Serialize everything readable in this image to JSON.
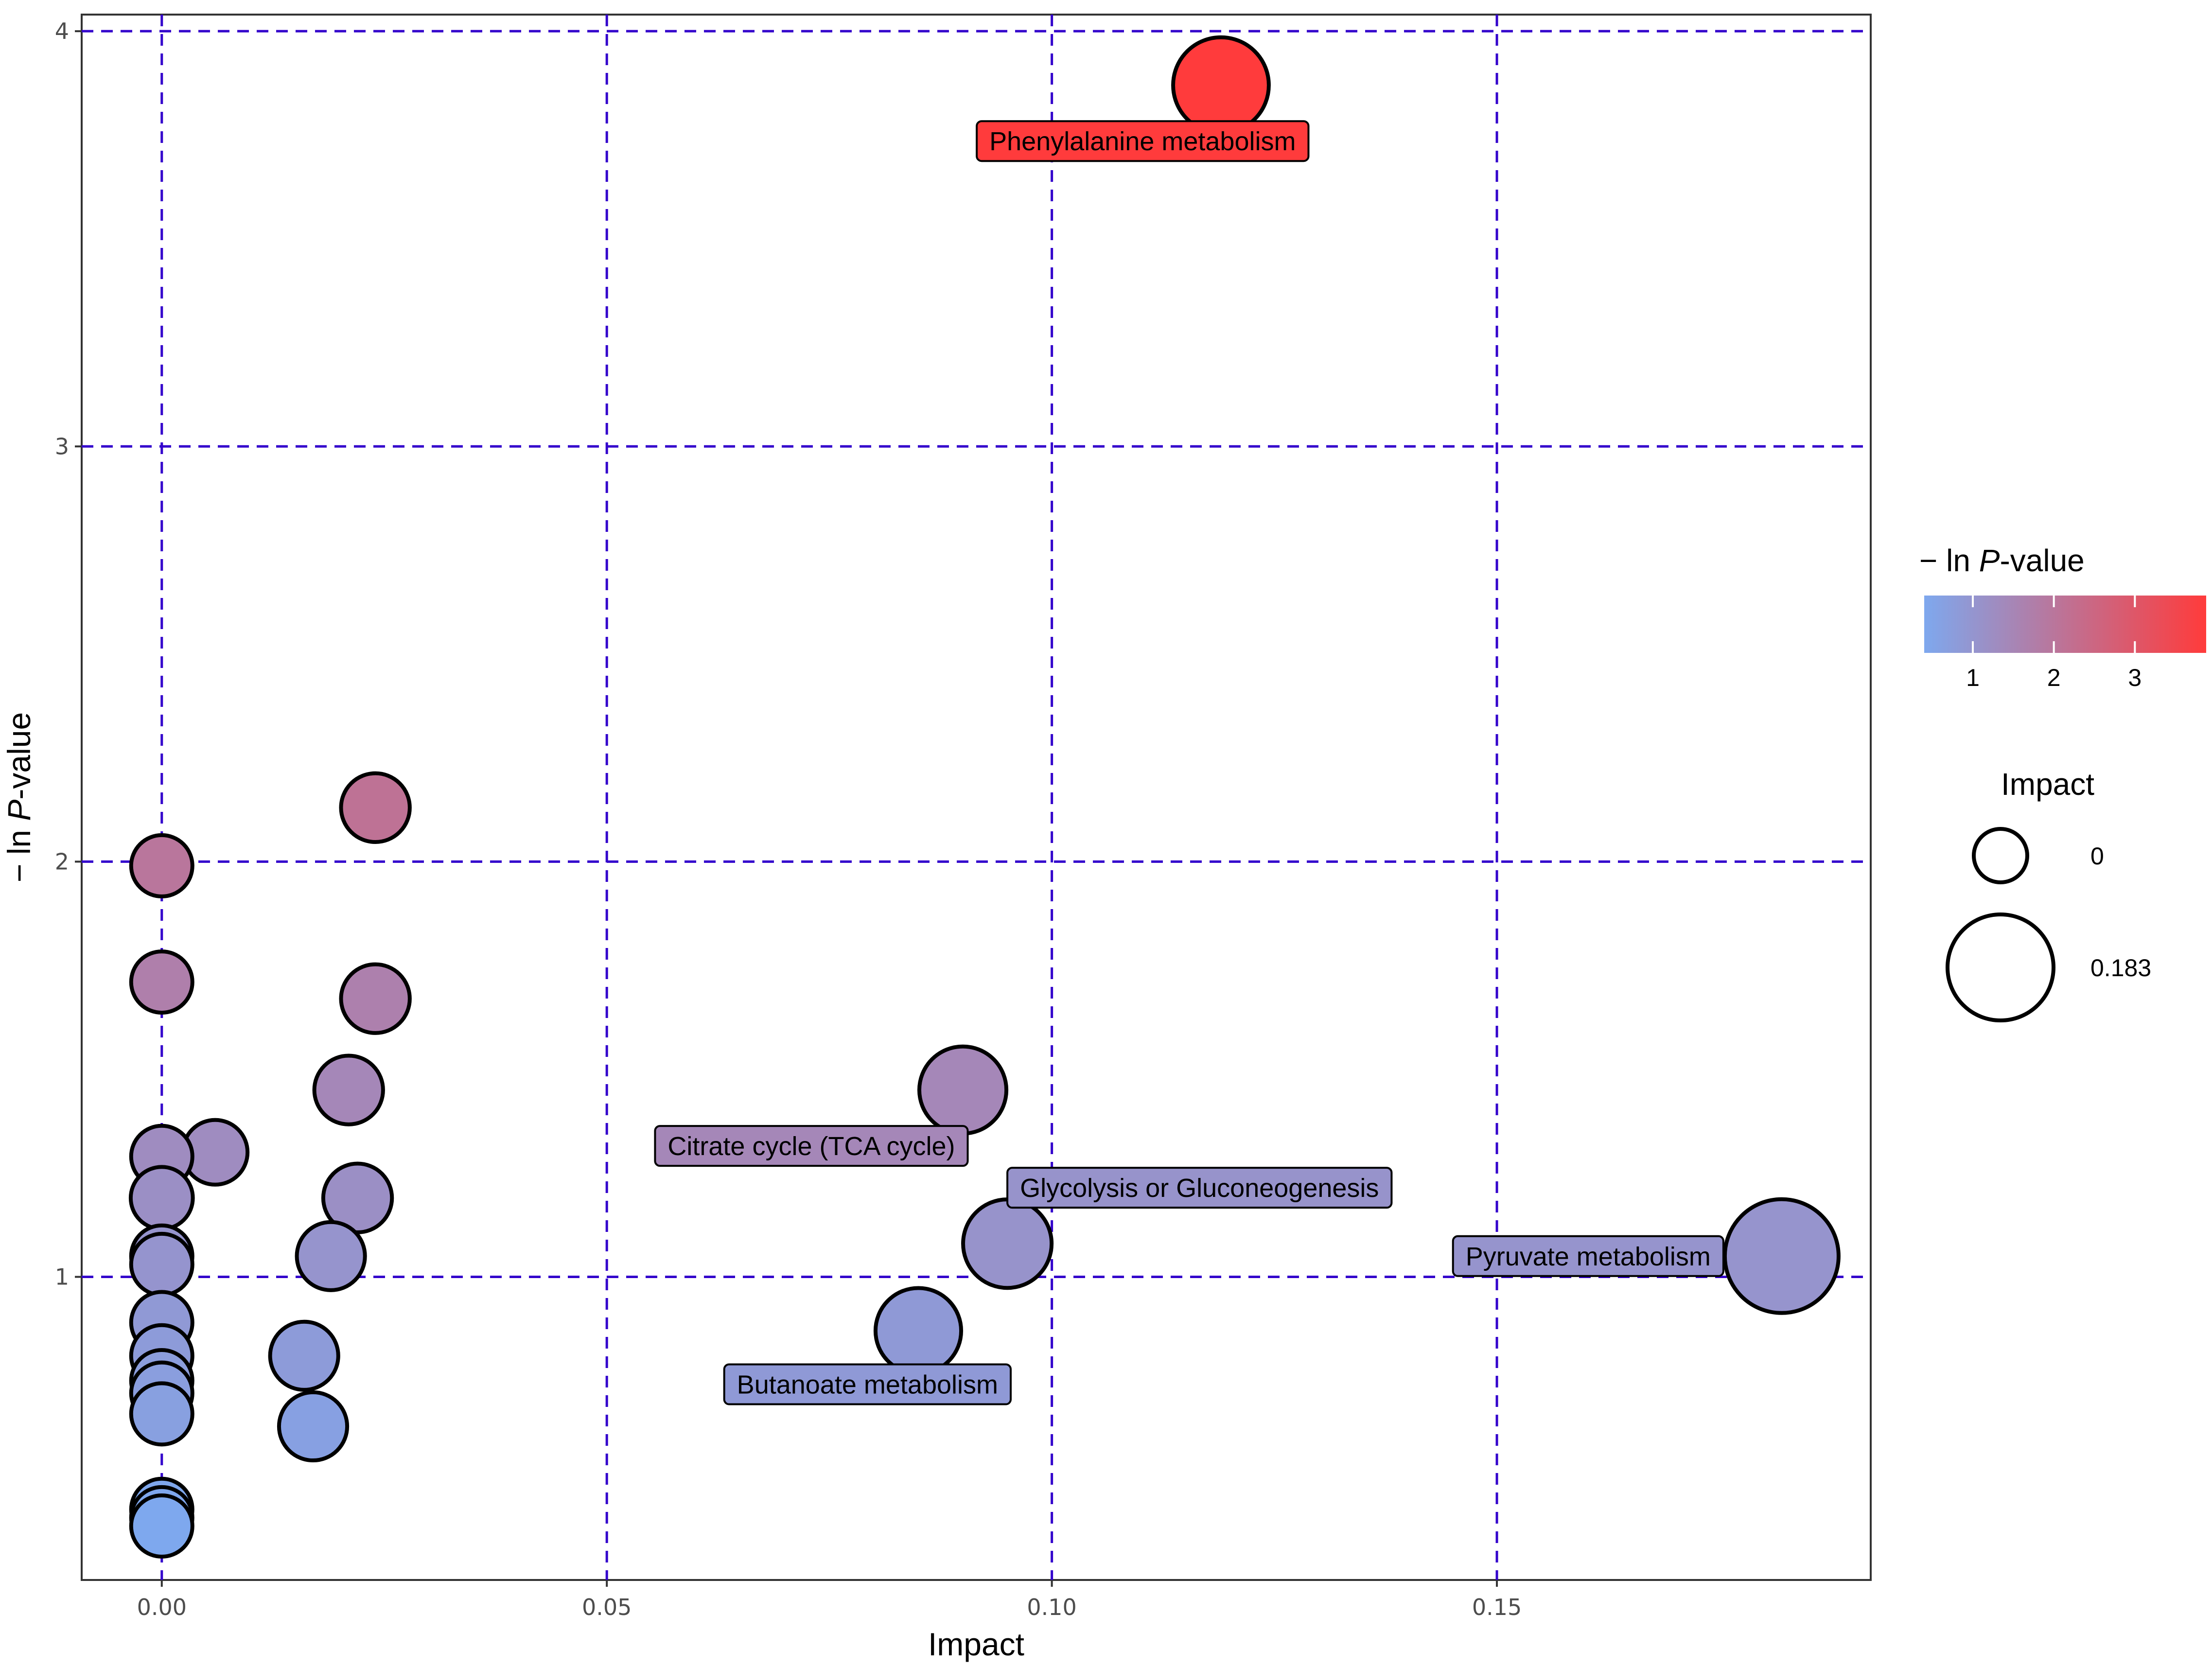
{
  "chart_data": {
    "type": "scatter",
    "xlabel": "Impact",
    "ylabel_prefix": "− ln ",
    "ylabel_italic": "P",
    "ylabel_suffix": "-value",
    "xlim": [
      -0.009,
      0.192
    ],
    "ylim": [
      0.27,
      4.04
    ],
    "x_ticks": [
      {
        "value": 0.0,
        "label": "0.00"
      },
      {
        "value": 0.05,
        "label": "0.05"
      },
      {
        "value": 0.1,
        "label": "0.10"
      },
      {
        "value": 0.15,
        "label": "0.15"
      }
    ],
    "y_ticks": [
      {
        "value": 1,
        "label": "1"
      },
      {
        "value": 2,
        "label": "2"
      },
      {
        "value": 3,
        "label": "3"
      },
      {
        "value": 4,
        "label": "4"
      }
    ],
    "grid": true,
    "grid_color": "#3300cc",
    "color_scale": {
      "low": "#7ea8ee",
      "high": "#ff3b3b",
      "min": 0.4,
      "max": 3.88
    },
    "points": [
      {
        "x": 0.119,
        "y": 3.87,
        "impact": 0.12
      },
      {
        "x": 0.024,
        "y": 2.13,
        "impact": 0.026
      },
      {
        "x": 0.0,
        "y": 1.99,
        "impact": 0.0
      },
      {
        "x": 0.0,
        "y": 1.71,
        "impact": 0.0
      },
      {
        "x": 0.024,
        "y": 1.67,
        "impact": 0.026
      },
      {
        "x": 0.021,
        "y": 1.45,
        "impact": 0.026
      },
      {
        "x": 0.09,
        "y": 1.45,
        "impact": 0.09
      },
      {
        "x": 0.006,
        "y": 1.3,
        "impact": 0.012
      },
      {
        "x": 0.0,
        "y": 1.29,
        "impact": 0.0
      },
      {
        "x": 0.0,
        "y": 1.19,
        "impact": 0.003
      },
      {
        "x": 0.022,
        "y": 1.19,
        "impact": 0.026
      },
      {
        "x": 0.0,
        "y": 1.05,
        "impact": 0.0
      },
      {
        "x": 0.0,
        "y": 1.03,
        "impact": 0.0
      },
      {
        "x": 0.019,
        "y": 1.05,
        "impact": 0.024
      },
      {
        "x": 0.095,
        "y": 1.08,
        "impact": 0.095
      },
      {
        "x": 0.182,
        "y": 1.05,
        "impact": 0.183
      },
      {
        "x": 0.0,
        "y": 0.89,
        "impact": 0.0
      },
      {
        "x": 0.085,
        "y": 0.87,
        "impact": 0.085
      },
      {
        "x": 0.0,
        "y": 0.81,
        "impact": 0.0
      },
      {
        "x": 0.016,
        "y": 0.81,
        "impact": 0.024
      },
      {
        "x": 0.0,
        "y": 0.75,
        "impact": 0.0
      },
      {
        "x": 0.0,
        "y": 0.72,
        "impact": 0.0
      },
      {
        "x": 0.0,
        "y": 0.67,
        "impact": 0.0
      },
      {
        "x": 0.017,
        "y": 0.64,
        "impact": 0.024
      },
      {
        "x": 0.0,
        "y": 0.44,
        "impact": 0.0
      },
      {
        "x": 0.0,
        "y": 0.42,
        "impact": 0.0
      },
      {
        "x": 0.0,
        "y": 0.4,
        "impact": 0.0
      }
    ],
    "annotations": [
      {
        "label": "Phenylalanine metabolism",
        "x": 0.119,
        "y": 3.87,
        "side": "lower-left"
      },
      {
        "label": "Citrate cycle (TCA cycle)",
        "x": 0.09,
        "y": 1.45,
        "side": "left"
      },
      {
        "label": "Glycolysis or Gluconeogenesis",
        "x": 0.095,
        "y": 1.08,
        "side": "upper-right"
      },
      {
        "label": "Pyruvate metabolism",
        "x": 0.182,
        "y": 1.05,
        "side": "left"
      },
      {
        "label": "Butanoate metabolism",
        "x": 0.085,
        "y": 0.87,
        "side": "lower-left"
      }
    ],
    "legend": {
      "color_title_prefix": "− ln ",
      "color_title_italic": "P",
      "color_title_suffix": "-value",
      "color_ticks": [
        {
          "value": 1,
          "label": "1"
        },
        {
          "value": 2,
          "label": "2"
        },
        {
          "value": 3,
          "label": "3"
        }
      ],
      "size_title": "Impact",
      "size_entries": [
        {
          "value": 0,
          "label": "0"
        },
        {
          "value": 0.183,
          "label": "0.183"
        }
      ],
      "placement": "right"
    }
  }
}
